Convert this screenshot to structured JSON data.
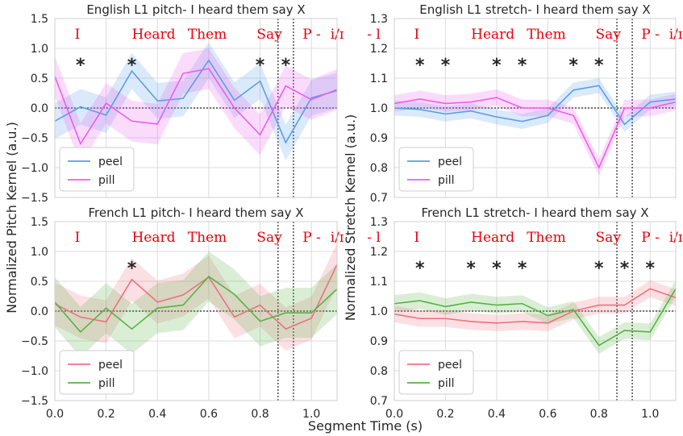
{
  "figure": {
    "ylabel_left": "Normalized Pitch Kernel (a.u.)",
    "ylabel_right": "Normalized Stretch Kernel (a.u.)",
    "xlabel": "Segment Time (s)"
  },
  "colors": {
    "peel_blue": "#5b9ee8",
    "pill_magenta": "#ee5cee",
    "peel_red": "#ee7080",
    "pill_green": "#58b246",
    "annot_red": "#e8000b"
  },
  "chart_data": [
    {
      "type": "line",
      "title": "English L1 pitch- I heard them say X",
      "xlim": [
        0,
        1.1
      ],
      "ylim": [
        -1.5,
        1.5
      ],
      "xticks": [
        "0.0",
        "0.2",
        "0.4",
        "0.6",
        "0.8",
        "1.0"
      ],
      "yticks": [
        "1.5",
        "1.0",
        "0.5",
        "0.0",
        "−0.5",
        "−1.0",
        "−1.5"
      ],
      "ytick_values": [
        1.5,
        1.0,
        0.5,
        0.0,
        -0.5,
        -1.0,
        -1.5
      ],
      "show_xticklabels": false,
      "x": [
        0.0,
        0.1,
        0.2,
        0.3,
        0.4,
        0.5,
        0.6,
        0.7,
        0.8,
        0.9,
        1.0,
        1.1
      ],
      "series": [
        {
          "name": "peel",
          "color": "#5b9ee8",
          "values": [
            -0.22,
            0.02,
            -0.12,
            0.62,
            0.12,
            0.16,
            0.8,
            0.13,
            0.45,
            -0.58,
            0.17,
            0.29
          ],
          "band": 0.3
        },
        {
          "name": "pill",
          "color": "#ee5cee",
          "values": [
            0.53,
            -0.6,
            0.08,
            -0.22,
            -0.27,
            0.58,
            0.66,
            0.0,
            -0.45,
            0.37,
            0.14,
            0.31
          ],
          "band": 0.34
        }
      ],
      "words": [
        "I",
        "Heard",
        "Them",
        "Say",
        "P -",
        "i/ɪ",
        "- l"
      ],
      "stars_x": [
        0.1,
        0.3,
        0.8,
        0.9
      ],
      "vlines": [
        0.87,
        0.93
      ],
      "hline": 0.0,
      "legend": [
        "peel",
        "pill"
      ],
      "legend_loc": "lower-left"
    },
    {
      "type": "line",
      "title": "English L1 stretch- I heard them say X",
      "xlim": [
        0,
        1.1
      ],
      "ylim": [
        0.7,
        1.3
      ],
      "xticks": [
        "0.0",
        "0.2",
        "0.4",
        "0.6",
        "0.8",
        "1.0"
      ],
      "yticks": [
        "1.3",
        "1.2",
        "1.1",
        "1.0",
        "0.9",
        "0.8",
        "0.7"
      ],
      "ytick_values": [
        1.3,
        1.2,
        1.1,
        1.0,
        0.9,
        0.8,
        0.7
      ],
      "show_xticklabels": false,
      "x": [
        0.0,
        0.1,
        0.2,
        0.3,
        0.4,
        0.5,
        0.6,
        0.7,
        0.8,
        0.9,
        1.0,
        1.1
      ],
      "series": [
        {
          "name": "peel",
          "color": "#5b9ee8",
          "values": [
            1.0,
            0.995,
            0.98,
            0.99,
            0.97,
            0.955,
            0.975,
            1.06,
            1.075,
            0.945,
            1.02,
            1.03
          ],
          "band": 0.025
        },
        {
          "name": "pill",
          "color": "#ee5cee",
          "values": [
            1.015,
            1.03,
            1.015,
            1.02,
            1.035,
            1.0,
            1.0,
            0.975,
            0.8,
            1.0,
            1.0,
            1.02
          ],
          "band": 0.028
        }
      ],
      "words": [
        "I",
        "Heard",
        "Them",
        "Say",
        "P -",
        "i/ɪ",
        "- l"
      ],
      "stars_x": [
        0.1,
        0.2,
        0.4,
        0.5,
        0.7,
        0.8
      ],
      "vlines": [
        0.87,
        0.93
      ],
      "hline": 1.0,
      "legend": [
        "peel",
        "pill"
      ],
      "legend_loc": "lower-left"
    },
    {
      "type": "line",
      "title": "French L1 pitch- I heard them say X",
      "xlim": [
        0,
        1.1
      ],
      "ylim": [
        -1.5,
        1.5
      ],
      "xticks": [
        "0.0",
        "0.2",
        "0.4",
        "0.6",
        "0.8",
        "1.0"
      ],
      "yticks": [
        "1.5",
        "1.0",
        "0.5",
        "0.0",
        "−0.5",
        "−1.0",
        "−1.5"
      ],
      "ytick_values": [
        1.5,
        1.0,
        0.5,
        0.0,
        -0.5,
        -1.0,
        -1.5
      ],
      "show_xticklabels": true,
      "x": [
        0.0,
        0.1,
        0.2,
        0.3,
        0.4,
        0.5,
        0.6,
        0.7,
        0.8,
        0.9,
        1.0,
        1.1
      ],
      "series": [
        {
          "name": "peel",
          "color": "#ee7080",
          "values": [
            0.12,
            -0.1,
            -0.18,
            0.53,
            0.15,
            0.27,
            0.57,
            -0.1,
            0.1,
            -0.3,
            -0.12,
            0.78
          ],
          "band": 0.36
        },
        {
          "name": "pill",
          "color": "#58b246",
          "values": [
            0.15,
            -0.35,
            0.05,
            -0.3,
            0.05,
            0.1,
            0.58,
            0.28,
            -0.17,
            -0.03,
            -0.03,
            0.37
          ],
          "band": 0.42
        }
      ],
      "words": [
        "I",
        "Heard",
        "Them",
        "Say",
        "P -",
        "i/ɪ",
        "- l"
      ],
      "stars_x": [
        0.3
      ],
      "vlines": [
        0.87,
        0.93
      ],
      "hline": 0.0,
      "legend": [
        "peel",
        "pill"
      ],
      "legend_loc": "lower-left"
    },
    {
      "type": "line",
      "title": "French L1 stretch- I heard them say X",
      "xlim": [
        0,
        1.1
      ],
      "ylim": [
        0.7,
        1.3
      ],
      "xticks": [
        "0.0",
        "0.2",
        "0.4",
        "0.6",
        "0.8",
        "1.0"
      ],
      "yticks": [
        "1.3",
        "1.2",
        "1.1",
        "1.0",
        "0.9",
        "0.8",
        "0.7"
      ],
      "ytick_values": [
        1.3,
        1.2,
        1.1,
        1.0,
        0.9,
        0.8,
        0.7
      ],
      "show_xticklabels": true,
      "x": [
        0.0,
        0.1,
        0.2,
        0.3,
        0.4,
        0.5,
        0.6,
        0.7,
        0.8,
        0.9,
        1.0,
        1.1
      ],
      "series": [
        {
          "name": "peel",
          "color": "#ee7080",
          "values": [
            0.99,
            0.975,
            0.975,
            0.965,
            0.96,
            0.965,
            0.96,
            1.0,
            1.02,
            1.02,
            1.075,
            1.045
          ],
          "band": 0.028
        },
        {
          "name": "pill",
          "color": "#58b246",
          "values": [
            1.025,
            1.035,
            1.015,
            1.03,
            1.02,
            1.025,
            0.985,
            1.005,
            0.885,
            0.935,
            0.93,
            1.075
          ],
          "band": 0.028
        }
      ],
      "words": [
        "I",
        "Heard",
        "Them",
        "Say",
        "P -",
        "i/ɪ",
        "- l"
      ],
      "stars_x": [
        0.1,
        0.3,
        0.4,
        0.5,
        0.8,
        0.9,
        1.0
      ],
      "vlines": [
        0.87,
        0.93
      ],
      "hline": 1.0,
      "legend": [
        "peel",
        "pill"
      ],
      "legend_loc": "lower-left"
    }
  ]
}
